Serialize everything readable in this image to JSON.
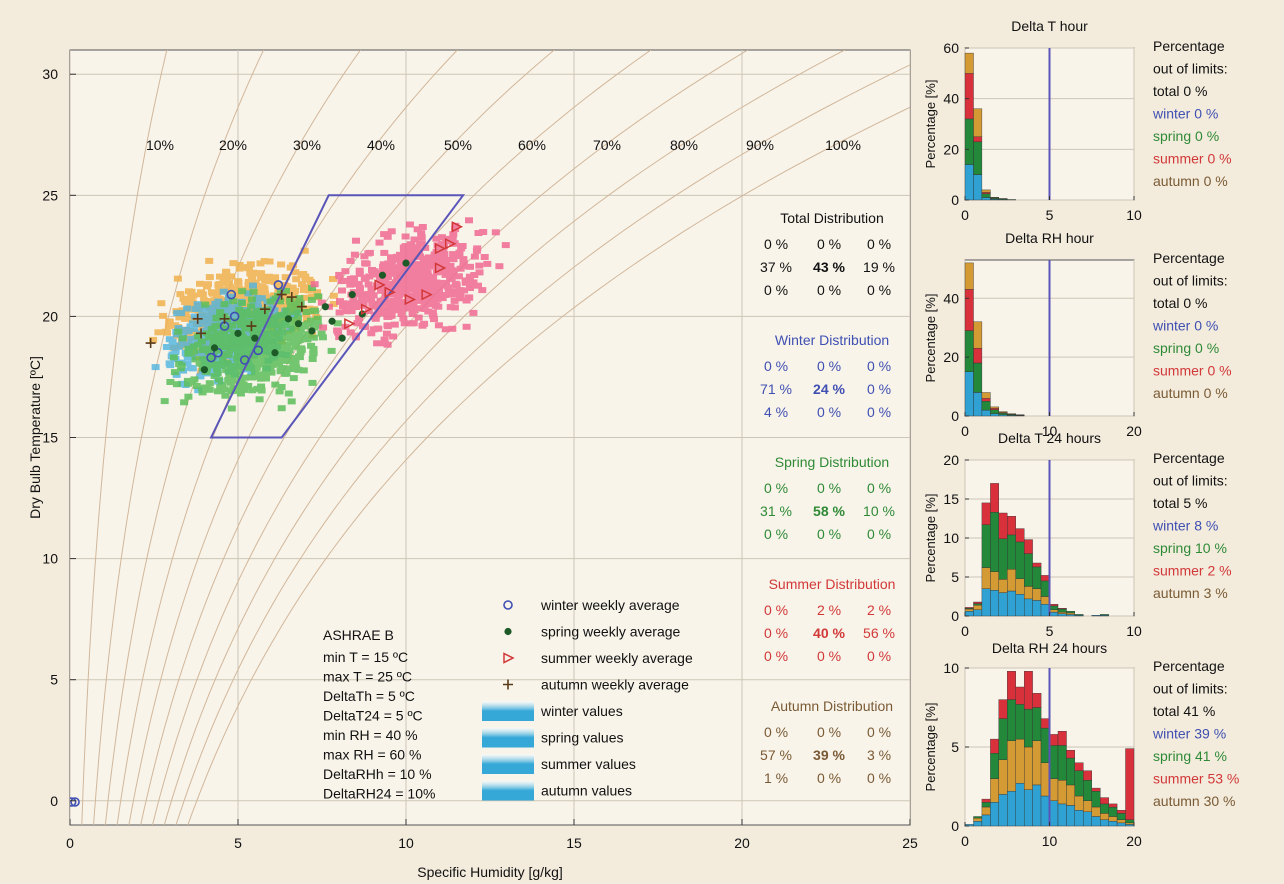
{
  "colors": {
    "background": "#f3ecdd",
    "panel": "#f8f4ea",
    "grid": "#cdc6b6",
    "rh_curve": "#d2b79a",
    "comfort_zone": "#5a55b8",
    "winter": "#3f4fb2",
    "spring": "#2f8a36",
    "summer": "#d23838",
    "autumn": "#7a5a34",
    "total": "#111111",
    "limit_line": "#5a55b8"
  },
  "chart_data": [
    {
      "type": "scatter",
      "title": "",
      "xlabel": "Specific Humidity [g/kg]",
      "ylabel": "Dry Bulb Temperature [ºC]",
      "xlim": [
        0,
        25
      ],
      "ylim": [
        -1,
        31
      ],
      "x_ticks": [
        0,
        5,
        10,
        15,
        20,
        25
      ],
      "y_ticks": [
        0,
        5,
        10,
        15,
        20,
        25,
        30
      ],
      "x_tick_labels": [
        "0",
        "5",
        "10",
        "15",
        "20",
        "25"
      ],
      "y_tick_labels": [
        "0",
        "5",
        "10",
        "15",
        "20",
        "25",
        "30"
      ],
      "grid": true,
      "rh_labels": [
        "10%",
        "20%",
        "30%",
        "40%",
        "50%",
        "60%",
        "70%",
        "80%",
        "90%",
        "100%"
      ],
      "rh_values": [
        10,
        20,
        30,
        40,
        50,
        60,
        70,
        80,
        90,
        100
      ],
      "comfort_zone": [
        [
          4.2,
          15
        ],
        [
          6.3,
          15
        ],
        [
          11.7,
          25
        ],
        [
          7.7,
          25
        ]
      ],
      "legend": [
        {
          "label": "winter weekly average",
          "marker": "open-circle",
          "color": "#3f4fb2"
        },
        {
          "label": "spring weekly average",
          "marker": "filled-circle",
          "color": "#1e5a28"
        },
        {
          "label": "summer weekly average",
          "marker": "triangle",
          "color": "#d23838"
        },
        {
          "label": "autumn weekly average",
          "marker": "plus",
          "color": "#5a3a18"
        },
        {
          "label": "winter values",
          "marker": "swatch",
          "color": "#35a8d8"
        },
        {
          "label": "spring values",
          "marker": "swatch",
          "color": "#4ab54a"
        },
        {
          "label": "summer values",
          "marker": "swatch",
          "color": "#ec5a7a"
        },
        {
          "label": "autumn values",
          "marker": "swatch",
          "color": "#e6a23a"
        }
      ],
      "value_clouds": [
        {
          "season": "autumn",
          "color": "#f0b24e",
          "opacity": 0.85,
          "center": [
            5.0,
            20.4
          ],
          "spread": [
            1.8,
            1.7
          ]
        },
        {
          "season": "winter",
          "color": "#4fb4e0",
          "opacity": 0.8,
          "center": [
            4.6,
            19.3
          ],
          "spread": [
            1.5,
            1.6
          ]
        },
        {
          "season": "spring",
          "color": "#5cbf5a",
          "opacity": 0.85,
          "center": [
            5.4,
            18.9
          ],
          "spread": [
            1.9,
            1.9
          ]
        },
        {
          "season": "summer",
          "color": "#f06a92",
          "opacity": 0.85,
          "center": [
            10.0,
            21.5
          ],
          "spread": [
            1.9,
            1.9
          ]
        }
      ],
      "series": [
        {
          "name": "winter weekly average",
          "marker": "open-circle",
          "color": "#3f4fb2",
          "points": [
            [
              0.05,
              -0.05
            ],
            [
              0.15,
              -0.05
            ],
            [
              4.4,
              18.5
            ],
            [
              4.2,
              18.3
            ],
            [
              4.9,
              20.0
            ],
            [
              4.8,
              20.9
            ],
            [
              5.2,
              18.2
            ],
            [
              5.6,
              18.6
            ],
            [
              4.6,
              19.6
            ],
            [
              6.2,
              21.3
            ]
          ]
        },
        {
          "name": "spring weekly average",
          "marker": "filled-circle",
          "color": "#1e5a28",
          "points": [
            [
              4.0,
              17.8
            ],
            [
              4.3,
              18.7
            ],
            [
              5.0,
              19.3
            ],
            [
              5.5,
              19.1
            ],
            [
              6.1,
              18.5
            ],
            [
              6.5,
              19.9
            ],
            [
              6.8,
              19.7
            ],
            [
              7.2,
              19.4
            ],
            [
              7.8,
              19.8
            ],
            [
              8.1,
              19.1
            ],
            [
              8.4,
              20.9
            ],
            [
              8.7,
              20.1
            ],
            [
              9.3,
              21.7
            ],
            [
              10.0,
              22.2
            ],
            [
              7.6,
              20.4
            ]
          ]
        },
        {
          "name": "summer weekly average",
          "marker": "triangle",
          "color": "#d23838",
          "points": [
            [
              8.3,
              19.7
            ],
            [
              8.8,
              20.3
            ],
            [
              9.2,
              21.3
            ],
            [
              9.5,
              21.0
            ],
            [
              10.1,
              20.7
            ],
            [
              10.6,
              20.9
            ],
            [
              11.0,
              22.0
            ],
            [
              11.0,
              22.8
            ],
            [
              11.3,
              23.0
            ],
            [
              11.5,
              23.7
            ]
          ]
        },
        {
          "name": "autumn weekly average",
          "marker": "plus",
          "color": "#5a3a18",
          "points": [
            [
              2.4,
              18.9
            ],
            [
              3.8,
              19.9
            ],
            [
              4.6,
              19.9
            ],
            [
              5.8,
              20.3
            ],
            [
              6.3,
              20.9
            ],
            [
              6.6,
              20.8
            ],
            [
              6.9,
              20.4
            ],
            [
              5.4,
              19.6
            ],
            [
              3.9,
              19.3
            ]
          ]
        }
      ],
      "annotation": {
        "title": "ASHRAE B",
        "lines": [
          "min T  =  15 ºC",
          "max T  =  25 ºC",
          "DeltaTh  =  5 ºC",
          "DeltaT24 = 5 ºC",
          "min RH  =  40 %",
          "max RH  =  60 %",
          "DeltaRHh = 10 %",
          "DeltaRH24 = 10%"
        ]
      },
      "distributions": [
        {
          "title": "Total Distribution",
          "color": "#111111",
          "rows": [
            [
              "0 %",
              "0 %",
              "0 %"
            ],
            [
              "37 %",
              "43 %",
              "19 %"
            ],
            [
              "0 %",
              "0 %",
              "0 %"
            ]
          ]
        },
        {
          "title": "Winter Distribution",
          "color": "#3f4fb2",
          "rows": [
            [
              "0 %",
              "0 %",
              "0 %"
            ],
            [
              "71 %",
              "24 %",
              "0 %"
            ],
            [
              "4 %",
              "0 %",
              "0 %"
            ]
          ]
        },
        {
          "title": "Spring Distribution",
          "color": "#2f8a36",
          "rows": [
            [
              "0 %",
              "0 %",
              "0 %"
            ],
            [
              "31 %",
              "58 %",
              "10 %"
            ],
            [
              "0 %",
              "0 %",
              "0 %"
            ]
          ]
        },
        {
          "title": "Summer Distribution",
          "color": "#d23838",
          "rows": [
            [
              "0 %",
              "2 %",
              "2 %"
            ],
            [
              "0 %",
              "40 %",
              "56 %"
            ],
            [
              "0 %",
              "0 %",
              "0 %"
            ]
          ]
        },
        {
          "title": "Autumn Distribution",
          "color": "#7a5a34",
          "rows": [
            [
              "0 %",
              "0 %",
              "0 %"
            ],
            [
              "57 %",
              "39 %",
              "3 %"
            ],
            [
              "1 %",
              "0 %",
              "0 %"
            ]
          ]
        }
      ]
    },
    {
      "type": "bar",
      "title": "Delta T hour",
      "xlabel": "",
      "ylabel": "Percentage [%]",
      "xlim": [
        0,
        10
      ],
      "ylim": [
        0,
        60
      ],
      "x_ticks": [
        0,
        5,
        10
      ],
      "y_ticks": [
        0,
        20,
        40,
        60
      ],
      "limit": 5,
      "bin_width": 0.5,
      "bins_start": [
        0,
        0.5,
        1.0,
        1.5,
        2.0,
        2.5
      ],
      "series": [
        {
          "name": "winter",
          "color": "#2fa1d2",
          "values": [
            14,
            10,
            1,
            0.3,
            0.2,
            0
          ]
        },
        {
          "name": "spring",
          "color": "#23883a",
          "values": [
            18,
            13,
            1.5,
            0.4,
            0.3,
            0.2
          ]
        },
        {
          "name": "summer",
          "color": "#d8313c",
          "values": [
            18,
            2,
            0.5,
            0.2,
            0,
            0
          ]
        },
        {
          "name": "autumn",
          "color": "#d49a34",
          "values": [
            8,
            11,
            1,
            0.2,
            0.1,
            0
          ]
        }
      ],
      "out_of_limits": {
        "heading": [
          "Percentage",
          "out of limits:"
        ],
        "total": "total  0 %",
        "winter": "winter 0 %",
        "spring": "spring 0 %",
        "summer": "summer 0 %",
        "autumn": "autumn 0 %"
      }
    },
    {
      "type": "bar",
      "title": "Delta RH hour",
      "xlabel": "",
      "ylabel": "Percentage [%]",
      "xlim": [
        0,
        20
      ],
      "ylim": [
        0,
        53
      ],
      "x_ticks": [
        0,
        10,
        20
      ],
      "y_ticks": [
        0,
        20,
        40
      ],
      "limit": 10,
      "bin_width": 1,
      "bins_start": [
        0,
        1,
        2,
        3,
        4,
        5,
        6
      ],
      "series": [
        {
          "name": "winter",
          "color": "#2fa1d2",
          "values": [
            15,
            8,
            2,
            0.8,
            0.4,
            0.2,
            0.1
          ]
        },
        {
          "name": "spring",
          "color": "#23883a",
          "values": [
            14,
            10,
            3,
            1.3,
            0.6,
            0.3,
            0.2
          ]
        },
        {
          "name": "summer",
          "color": "#d8313c",
          "values": [
            14,
            5,
            1,
            0.5,
            0.2,
            0.1,
            0.1
          ]
        },
        {
          "name": "autumn",
          "color": "#d49a34",
          "values": [
            9,
            9,
            2,
            0.5,
            0.3,
            0.2,
            0
          ]
        }
      ],
      "out_of_limits": {
        "heading": [
          "Percentage",
          "out of limits:"
        ],
        "total": "total  0 %",
        "winter": "winter 0 %",
        "spring": "spring 0 %",
        "summer": "summer 0 %",
        "autumn": "autumn 0 %"
      }
    },
    {
      "type": "bar",
      "title": "Delta T 24 hours",
      "xlabel": "",
      "ylabel": "Percentage [%]",
      "xlim": [
        0,
        10
      ],
      "ylim": [
        0,
        20
      ],
      "x_ticks": [
        0,
        5,
        10
      ],
      "y_ticks": [
        0,
        5,
        10,
        15,
        20
      ],
      "limit": 5,
      "bin_width": 0.5,
      "bins_start": [
        0,
        0.5,
        1.0,
        1.5,
        2.0,
        2.5,
        3.0,
        3.5,
        4.0,
        4.5,
        5.0,
        5.5,
        6.0,
        6.5,
        7.0,
        7.5,
        8.0
      ],
      "series": [
        {
          "name": "winter",
          "color": "#2fa1d2",
          "values": [
            0.6,
            0.8,
            3.5,
            3.3,
            3.0,
            3.2,
            2.8,
            2.2,
            2.0,
            1.5,
            0.5,
            0.3,
            0.2,
            0.1,
            0,
            0.1,
            0.1
          ]
        },
        {
          "name": "autumn",
          "color": "#d49a34",
          "values": [
            0.3,
            0.6,
            2.7,
            2.4,
            1.7,
            2.8,
            2.0,
            1.6,
            1.5,
            1.0,
            0.3,
            0.2,
            0.2,
            0,
            0,
            0,
            0
          ]
        },
        {
          "name": "spring",
          "color": "#23883a",
          "values": [
            0.1,
            0.2,
            5.5,
            7.6,
            5.2,
            4.4,
            4.7,
            4.2,
            2.8,
            2.0,
            0.5,
            0.4,
            0.2,
            0.1,
            0,
            0,
            0.1
          ]
        },
        {
          "name": "summer",
          "color": "#d8313c",
          "values": [
            0.1,
            0.2,
            2.8,
            3.7,
            3.3,
            2.4,
            1.7,
            1.8,
            0.5,
            0.7,
            0.2,
            0.1,
            0,
            0,
            0,
            0,
            0
          ]
        }
      ],
      "out_of_limits": {
        "heading": [
          "Percentage",
          "out of limits:"
        ],
        "total": "total  5 %",
        "winter": "winter 8 %",
        "spring": "spring 10 %",
        "summer": "summer 2 %",
        "autumn": "autumn 3 %"
      }
    },
    {
      "type": "bar",
      "title": "Delta RH 24 hours",
      "xlabel": "",
      "ylabel": "Percentage [%]",
      "xlim": [
        0,
        20
      ],
      "ylim": [
        0,
        10
      ],
      "x_ticks": [
        0,
        10,
        20
      ],
      "y_ticks": [
        0,
        5,
        10
      ],
      "limit": 10,
      "bin_width": 1,
      "bins_start": [
        0,
        1,
        2,
        3,
        4,
        5,
        6,
        7,
        8,
        9,
        10,
        11,
        12,
        13,
        14,
        15,
        16,
        17,
        18,
        19
      ],
      "series": [
        {
          "name": "winter",
          "color": "#2fa1d2",
          "values": [
            0.1,
            0.3,
            0.7,
            1.5,
            2.0,
            2.2,
            2.7,
            2.3,
            2.6,
            1.9,
            1.6,
            1.4,
            1.3,
            1.0,
            0.9,
            0.6,
            0.4,
            0.3,
            0.2,
            0.1
          ]
        },
        {
          "name": "autumn",
          "color": "#d49a34",
          "values": [
            0,
            0.2,
            0.5,
            1.5,
            2.2,
            3.2,
            2.8,
            2.7,
            2.8,
            2.1,
            1.4,
            1.5,
            1.3,
            0.9,
            0.7,
            0.6,
            0.4,
            0.3,
            0.2,
            0.1
          ]
        },
        {
          "name": "spring",
          "color": "#23883a",
          "values": [
            0,
            0.1,
            0.3,
            1.6,
            2.6,
            2.6,
            2.2,
            2.4,
            2.1,
            2.2,
            2.1,
            2.2,
            1.7,
            1.6,
            1.3,
            1.0,
            0.6,
            0.6,
            0.4,
            0.2
          ]
        },
        {
          "name": "summer",
          "color": "#d8313c",
          "values": [
            0,
            0,
            0.2,
            0.9,
            1.2,
            1.8,
            1.1,
            2.4,
            0.9,
            0.6,
            0.7,
            0.9,
            0.5,
            0.5,
            0.6,
            0.2,
            0.4,
            0.2,
            0.2,
            4.5
          ]
        }
      ],
      "out_of_limits": {
        "heading": [
          "Percentage",
          "out of limits:"
        ],
        "total": "total  41 %",
        "winter": "winter 39 %",
        "spring": "spring 41 %",
        "summer": "summer 53 %",
        "autumn": "autumn 30 %"
      }
    }
  ]
}
